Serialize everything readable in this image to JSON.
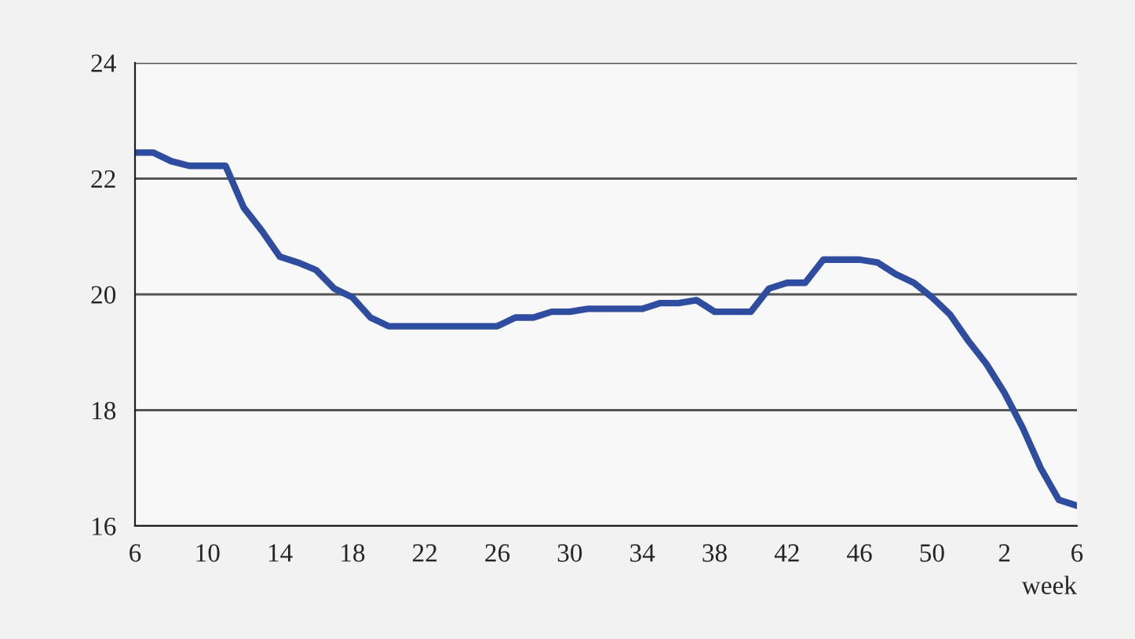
{
  "chart_data": {
    "type": "line",
    "xlabel": "week",
    "categories": [
      "6",
      null,
      null,
      null,
      "10",
      null,
      null,
      null,
      "14",
      null,
      null,
      null,
      "18",
      null,
      null,
      null,
      "22",
      null,
      null,
      null,
      "26",
      null,
      null,
      null,
      "30",
      null,
      null,
      null,
      "34",
      null,
      null,
      null,
      "38",
      null,
      null,
      null,
      "42",
      null,
      null,
      null,
      "46",
      null,
      null,
      null,
      "50",
      null,
      null,
      null,
      "2",
      null,
      null,
      null,
      "6"
    ],
    "series": [
      {
        "color": "#2e4da0",
        "values": [
          22.45,
          22.45,
          22.3,
          22.22,
          22.22,
          22.22,
          21.5,
          21.1,
          20.65,
          20.55,
          20.42,
          20.1,
          19.95,
          19.6,
          19.45,
          19.45,
          19.45,
          19.45,
          19.45,
          19.45,
          19.45,
          19.6,
          19.6,
          19.7,
          19.7,
          19.75,
          19.75,
          19.75,
          19.75,
          19.85,
          19.85,
          19.9,
          19.7,
          19.7,
          19.7,
          20.1,
          20.2,
          20.2,
          20.6,
          20.6,
          20.6,
          20.55,
          20.35,
          20.2,
          19.95,
          19.65,
          19.2,
          18.8,
          18.3,
          17.7,
          17.0,
          16.45,
          16.35
        ]
      }
    ],
    "ylim": [
      16,
      24
    ],
    "yticks": [
      16,
      18,
      20,
      22,
      24
    ],
    "grid": "y",
    "legend": false,
    "marker": "none",
    "line_style": "solid"
  }
}
